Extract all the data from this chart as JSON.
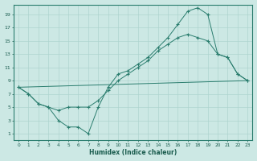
{
  "xlabel": "Humidex (Indice chaleur)",
  "bg_color": "#cce8e4",
  "grid_color": "#aed4cf",
  "line_color": "#2a7d6e",
  "xlim": [
    -0.5,
    23.5
  ],
  "ylim": [
    0,
    20.5
  ],
  "xticks": [
    0,
    1,
    2,
    3,
    4,
    5,
    6,
    7,
    8,
    9,
    10,
    11,
    12,
    13,
    14,
    15,
    16,
    17,
    18,
    19,
    20,
    21,
    22,
    23
  ],
  "yticks": [
    1,
    3,
    5,
    7,
    9,
    11,
    13,
    15,
    17,
    19
  ],
  "line1_x": [
    0,
    1,
    2,
    3,
    4,
    5,
    6,
    7,
    8,
    9,
    10,
    11,
    12,
    13,
    14,
    15,
    16,
    17,
    18,
    19,
    20,
    21,
    22,
    23
  ],
  "line1_y": [
    8,
    7,
    5.5,
    5,
    3,
    2,
    2,
    1,
    5,
    8,
    10,
    10.5,
    11.5,
    12.5,
    14,
    15.5,
    17.5,
    19.5,
    20,
    19,
    13,
    12.5,
    10,
    9
  ],
  "line2_x": [
    0,
    1,
    2,
    3,
    4,
    5,
    6,
    7,
    8,
    9,
    10,
    11,
    12,
    13,
    14,
    15,
    16,
    17,
    18,
    19,
    20,
    21,
    22,
    23
  ],
  "line2_y": [
    8,
    7,
    5.5,
    5,
    4.5,
    5,
    5,
    5,
    6,
    7.5,
    9,
    10,
    11,
    12,
    13.5,
    14.5,
    15.5,
    16,
    15.5,
    15,
    13,
    12.5,
    10,
    9
  ],
  "line3_x": [
    0,
    23
  ],
  "line3_y": [
    8,
    9
  ]
}
